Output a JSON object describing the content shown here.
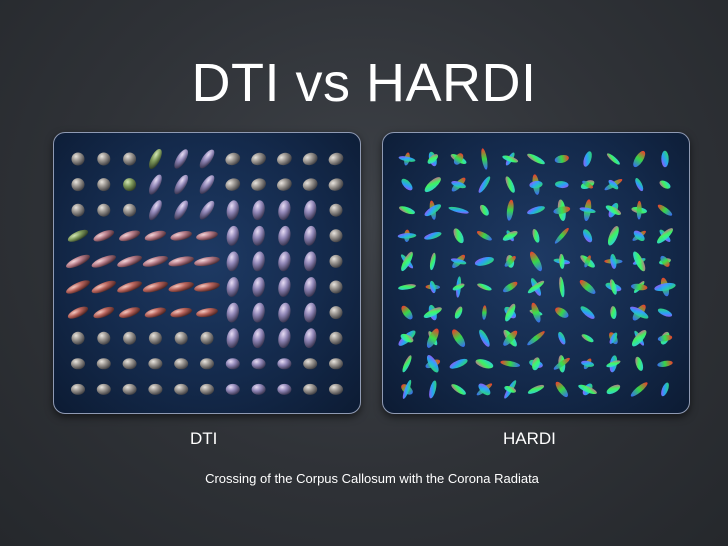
{
  "slide": {
    "title": "DTI vs HARDI",
    "caption": "Crossing of the Corpus Callosum with the Corona Radiata"
  },
  "panels": {
    "dti": {
      "label": "DTI"
    },
    "hardi": {
      "label": "HARDI"
    }
  },
  "colors": {
    "background": "#2f3237",
    "panel_fill": "#142a4c",
    "panel_border": "#8f9ab3",
    "text": "#ffffff"
  }
}
